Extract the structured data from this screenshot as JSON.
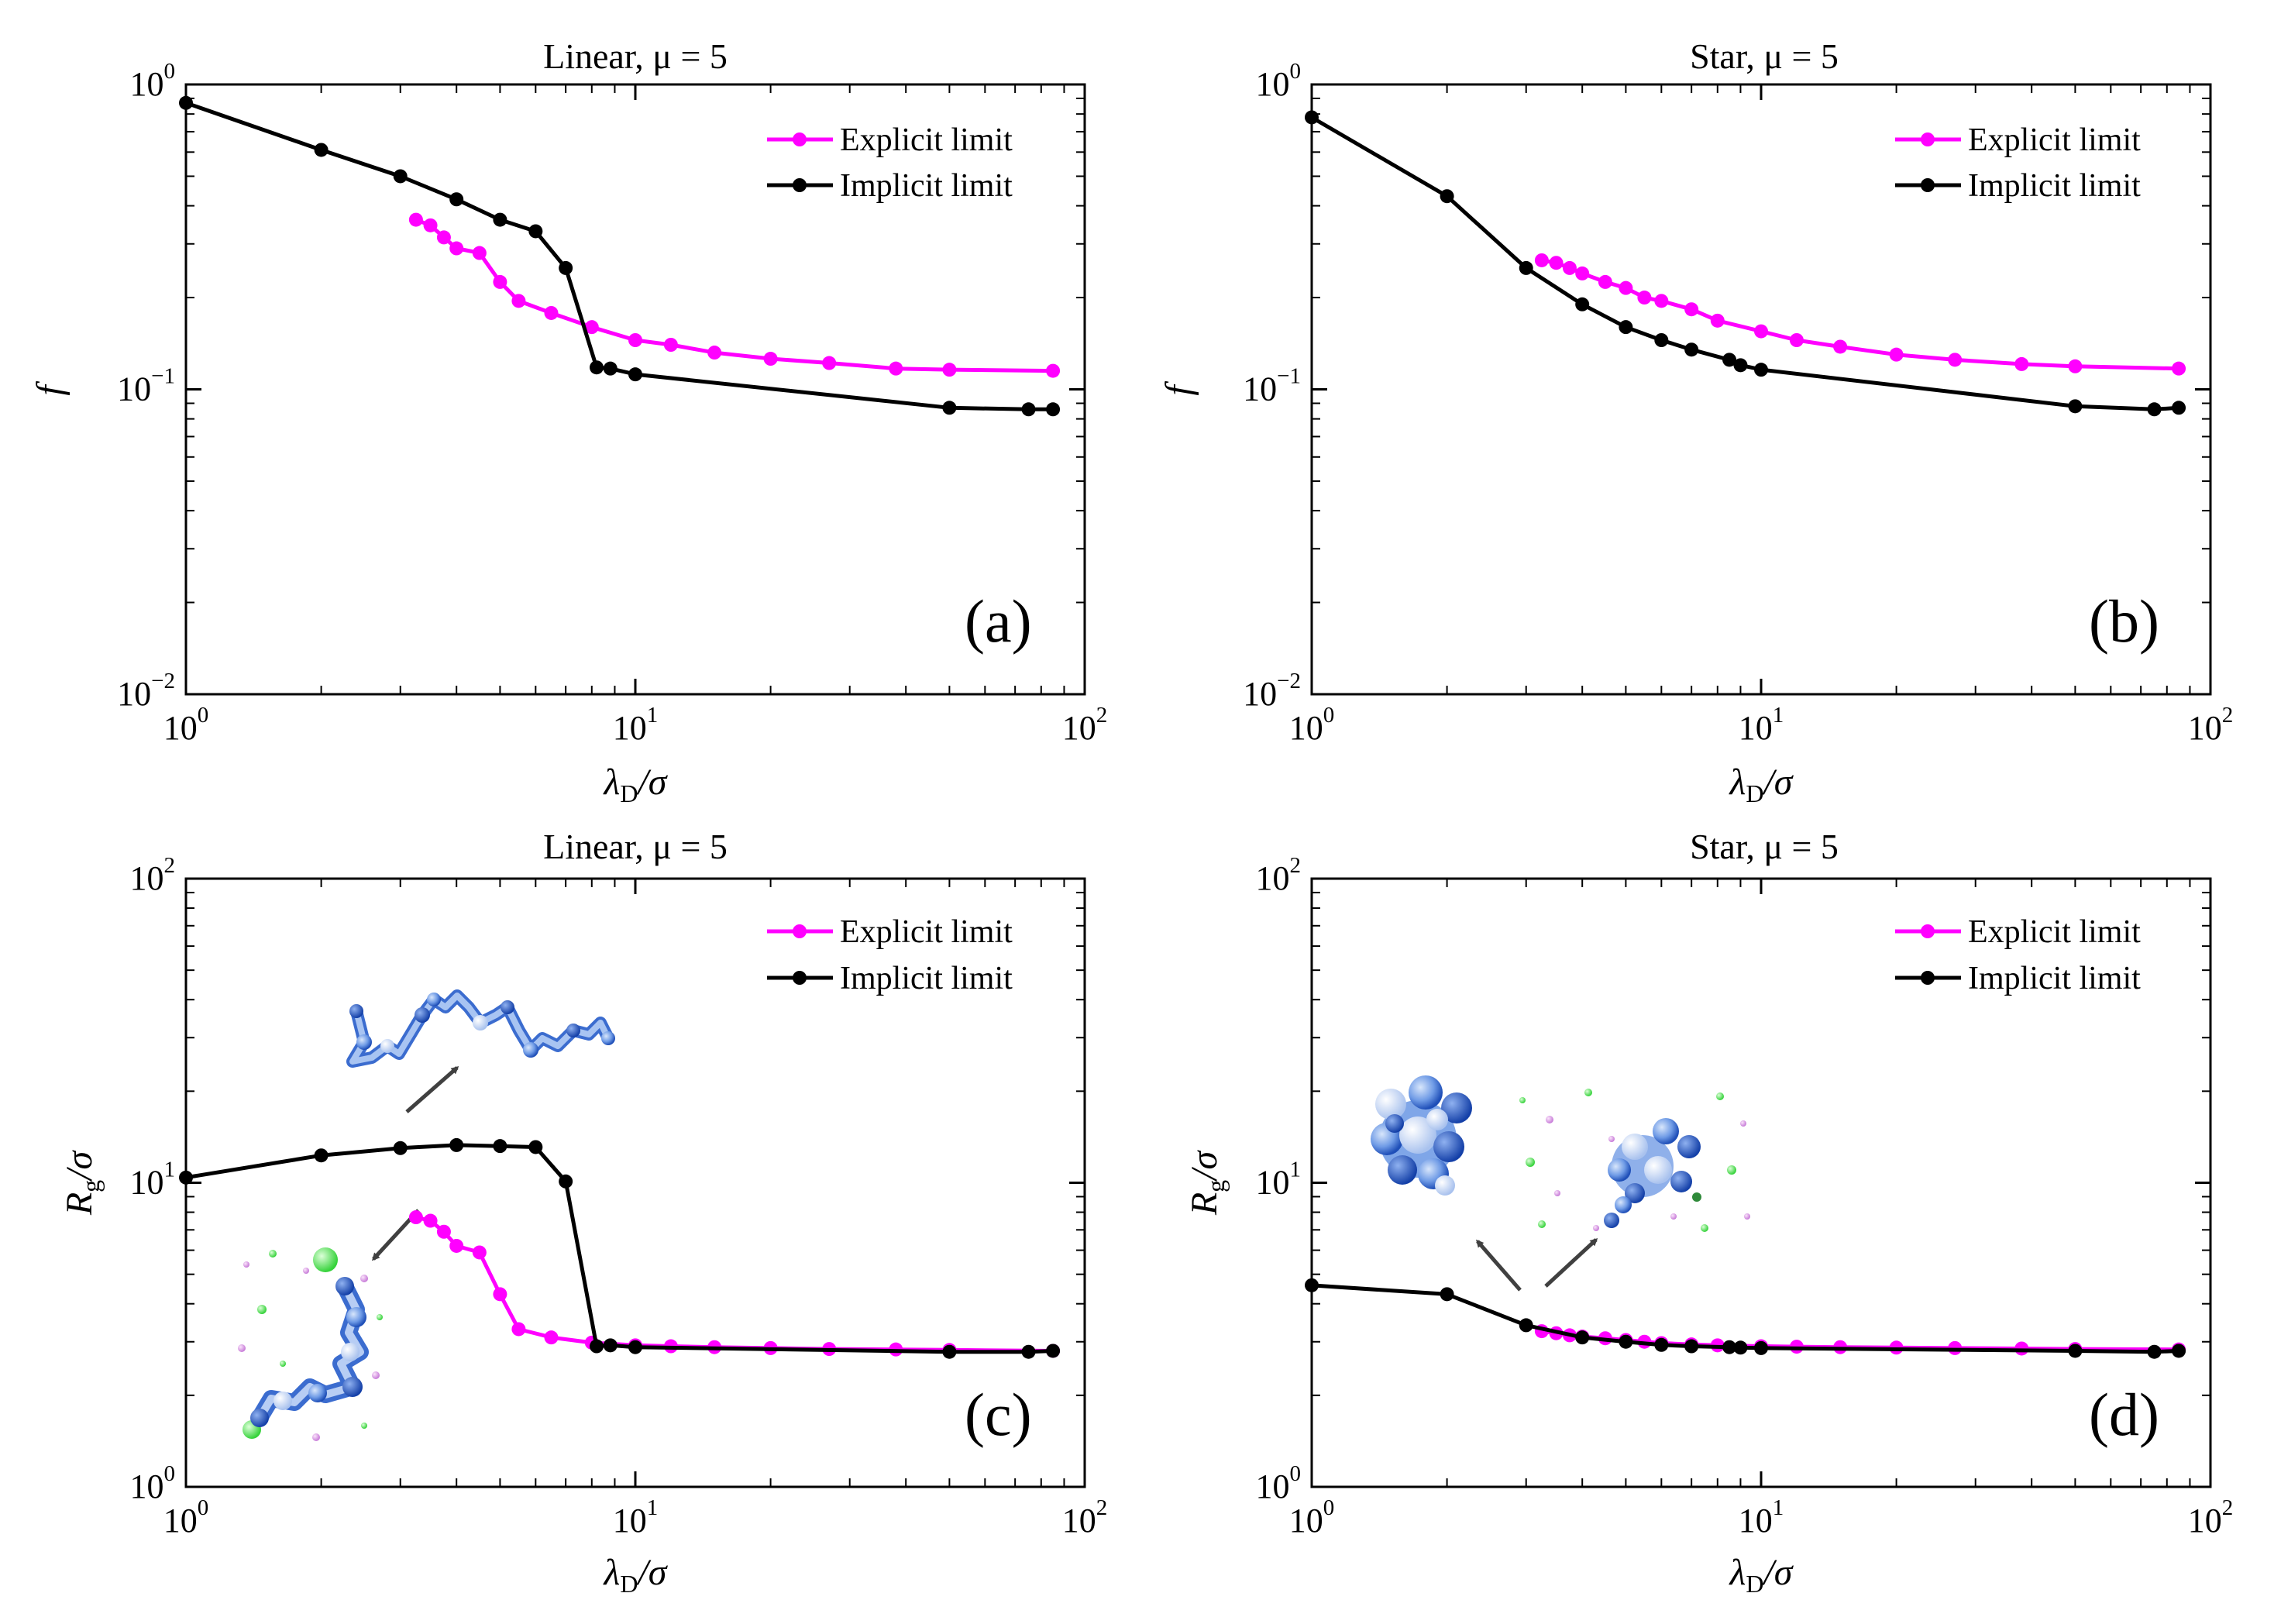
{
  "colors": {
    "explicit": "#ff00ff",
    "implicit": "#000000"
  },
  "chart_data": [
    {
      "type": "line",
      "id": "a",
      "title": "Linear, μ = 5",
      "panel_label": "(a)",
      "xlabel": "λD/σ",
      "ylabel": "f",
      "xscale": "log",
      "yscale": "log",
      "xlim": [
        1,
        100
      ],
      "ylim": [
        0.01,
        1
      ],
      "xticks": [
        {
          "base": "10",
          "exp": "0"
        },
        {
          "base": "10",
          "exp": "1"
        },
        {
          "base": "10",
          "exp": "2"
        }
      ],
      "yticks": [
        {
          "base": "10",
          "exp": "−2"
        },
        {
          "base": "10",
          "exp": "−1"
        },
        {
          "base": "10",
          "exp": "0"
        }
      ],
      "legend": [
        "Explicit limit",
        "Implicit limit"
      ],
      "legend_position": "top-right",
      "series": [
        {
          "name": "Explicit limit",
          "color": "#ff00ff",
          "x": [
            3.25,
            3.5,
            3.75,
            4,
            4.5,
            5,
            5.5,
            6.5,
            8,
            10,
            12,
            15,
            20,
            27,
            38,
            50,
            85
          ],
          "y": [
            0.36,
            0.345,
            0.315,
            0.29,
            0.28,
            0.225,
            0.195,
            0.178,
            0.16,
            0.145,
            0.14,
            0.132,
            0.126,
            0.122,
            0.117,
            0.116,
            0.115
          ]
        },
        {
          "name": "Implicit limit",
          "color": "#000000",
          "x": [
            1,
            2,
            3,
            4,
            5,
            6,
            7,
            8.2,
            8.8,
            10,
            50,
            75,
            85
          ],
          "y": [
            0.87,
            0.61,
            0.5,
            0.42,
            0.36,
            0.33,
            0.25,
            0.118,
            0.117,
            0.112,
            0.087,
            0.086,
            0.086
          ]
        }
      ],
      "annotations": []
    },
    {
      "type": "line",
      "id": "b",
      "title": "Star, μ = 5",
      "panel_label": "(b)",
      "xlabel": "λD/σ",
      "ylabel": "f",
      "xscale": "log",
      "yscale": "log",
      "xlim": [
        1,
        100
      ],
      "ylim": [
        0.01,
        1
      ],
      "xticks": [
        {
          "base": "10",
          "exp": "0"
        },
        {
          "base": "10",
          "exp": "1"
        },
        {
          "base": "10",
          "exp": "2"
        }
      ],
      "yticks": [
        {
          "base": "10",
          "exp": "−2"
        },
        {
          "base": "10",
          "exp": "−1"
        },
        {
          "base": "10",
          "exp": "0"
        }
      ],
      "legend": [
        "Explicit limit",
        "Implicit limit"
      ],
      "legend_position": "top-right",
      "series": [
        {
          "name": "Explicit limit",
          "color": "#ff00ff",
          "x": [
            3.25,
            3.5,
            3.75,
            4,
            4.5,
            5,
            5.5,
            6,
            7,
            8,
            10,
            12,
            15,
            20,
            27,
            38,
            50,
            85
          ],
          "y": [
            0.265,
            0.26,
            0.25,
            0.24,
            0.225,
            0.215,
            0.2,
            0.195,
            0.183,
            0.168,
            0.155,
            0.145,
            0.138,
            0.13,
            0.125,
            0.121,
            0.119,
            0.117
          ]
        },
        {
          "name": "Implicit limit",
          "color": "#000000",
          "x": [
            1,
            2,
            3,
            4,
            5,
            6,
            7,
            8.5,
            9,
            10,
            50,
            75,
            85
          ],
          "y": [
            0.78,
            0.43,
            0.25,
            0.19,
            0.16,
            0.145,
            0.135,
            0.125,
            0.12,
            0.116,
            0.088,
            0.086,
            0.087
          ]
        }
      ],
      "annotations": []
    },
    {
      "type": "line",
      "id": "c",
      "title": "Linear, μ = 5",
      "panel_label": "(c)",
      "xlabel": "λD/σ",
      "ylabel": "Rg/σ",
      "xscale": "log",
      "yscale": "log",
      "xlim": [
        1,
        100
      ],
      "ylim": [
        1,
        100
      ],
      "xticks": [
        {
          "base": "10",
          "exp": "0"
        },
        {
          "base": "10",
          "exp": "1"
        },
        {
          "base": "10",
          "exp": "2"
        }
      ],
      "yticks": [
        {
          "base": "10",
          "exp": "0"
        },
        {
          "base": "10",
          "exp": "1"
        },
        {
          "base": "10",
          "exp": "2"
        }
      ],
      "legend": [
        "Explicit limit",
        "Implicit limit"
      ],
      "legend_position": "top-right",
      "series": [
        {
          "name": "Explicit limit",
          "color": "#ff00ff",
          "x": [
            3.25,
            3.5,
            3.75,
            4,
            4.5,
            5,
            5.5,
            6.5,
            8,
            10,
            12,
            15,
            20,
            27,
            38,
            50,
            85
          ],
          "y": [
            7.7,
            7.5,
            6.9,
            6.2,
            5.9,
            4.3,
            3.3,
            3.1,
            2.98,
            2.92,
            2.9,
            2.88,
            2.86,
            2.84,
            2.83,
            2.82,
            2.8
          ]
        },
        {
          "name": "Implicit limit",
          "color": "#000000",
          "x": [
            1,
            2,
            3,
            4,
            5,
            6,
            7,
            8.2,
            8.8,
            10,
            50,
            75,
            85
          ],
          "y": [
            10.4,
            12.3,
            13.0,
            13.3,
            13.2,
            13.1,
            10.1,
            2.9,
            2.92,
            2.88,
            2.78,
            2.78,
            2.8
          ]
        }
      ],
      "annotations": [
        "extended linear chain snapshot (implicit limit)",
        "collapsed chain with ions snapshot (explicit limit)"
      ]
    },
    {
      "type": "line",
      "id": "d",
      "title": "Star, μ = 5",
      "panel_label": "(d)",
      "xlabel": "λD/σ",
      "ylabel": "Rg/σ",
      "xscale": "log",
      "yscale": "log",
      "xlim": [
        1,
        100
      ],
      "ylim": [
        1,
        100
      ],
      "xticks": [
        {
          "base": "10",
          "exp": "0"
        },
        {
          "base": "10",
          "exp": "1"
        },
        {
          "base": "10",
          "exp": "2"
        }
      ],
      "yticks": [
        {
          "base": "10",
          "exp": "0"
        },
        {
          "base": "10",
          "exp": "1"
        },
        {
          "base": "10",
          "exp": "2"
        }
      ],
      "legend": [
        "Explicit limit",
        "Implicit limit"
      ],
      "legend_position": "top-right",
      "series": [
        {
          "name": "Explicit limit",
          "color": "#ff00ff",
          "x": [
            3.25,
            3.5,
            3.75,
            4,
            4.5,
            5,
            5.5,
            6,
            7,
            8,
            10,
            12,
            15,
            20,
            27,
            38,
            50,
            85
          ],
          "y": [
            3.25,
            3.2,
            3.15,
            3.12,
            3.08,
            3.04,
            3.0,
            2.97,
            2.94,
            2.92,
            2.9,
            2.89,
            2.88,
            2.87,
            2.86,
            2.85,
            2.84,
            2.83
          ]
        },
        {
          "name": "Implicit limit",
          "color": "#000000",
          "x": [
            1,
            2,
            3,
            4,
            5,
            6,
            7,
            8.5,
            9,
            10,
            50,
            75,
            85
          ],
          "y": [
            4.6,
            4.3,
            3.4,
            3.1,
            3.0,
            2.93,
            2.9,
            2.88,
            2.87,
            2.86,
            2.8,
            2.78,
            2.8
          ]
        }
      ],
      "annotations": [
        "compact star snapshot (implicit limit)",
        "star with ions snapshot (explicit limit)"
      ]
    }
  ]
}
